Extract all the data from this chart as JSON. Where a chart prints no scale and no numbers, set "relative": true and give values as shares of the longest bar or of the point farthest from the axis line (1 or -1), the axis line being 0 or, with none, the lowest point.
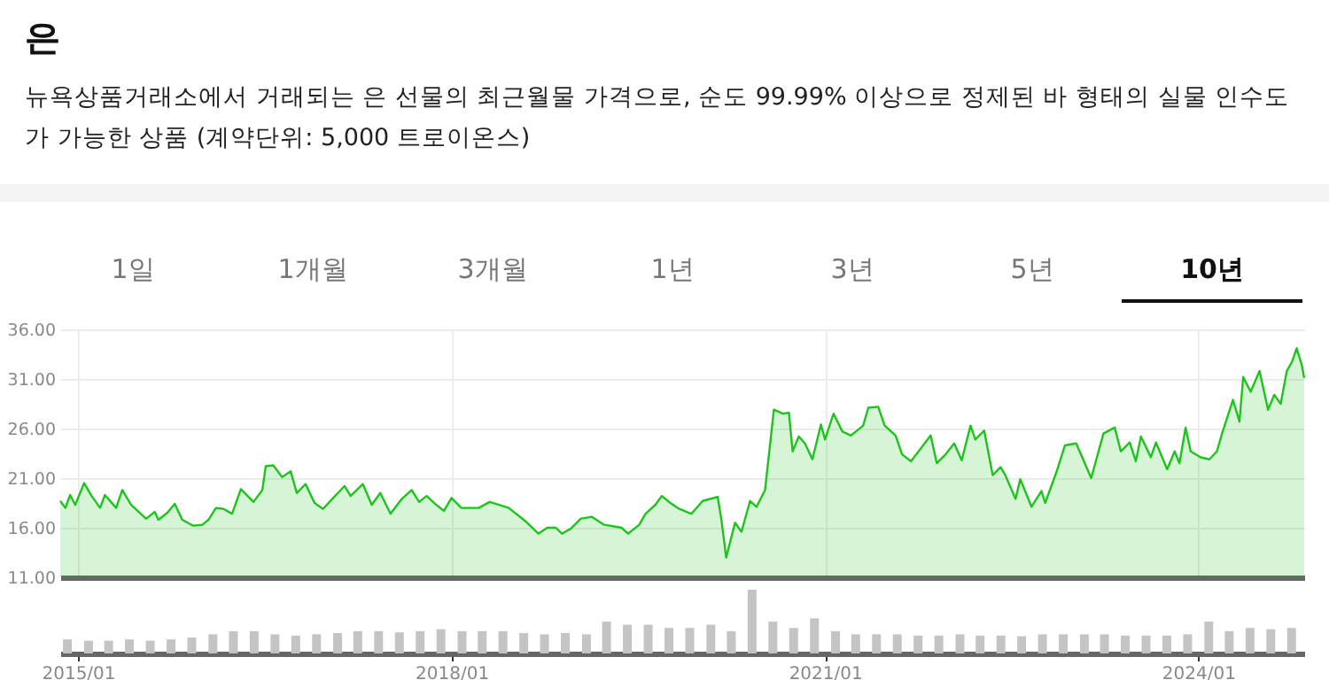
{
  "chart_data": [
    {
      "type": "area",
      "title": "은",
      "subtitle": "뉴욕상품거래소에서 거래되는 은 선물의 최근월물 가격으로, 순도 99.99% 이상으로 정제된 바 형태의 실물 인수도가 가능한 상품 (계약단위: 5,000 트로이온스)",
      "annotations": [
        "1일",
        "1개월",
        "3개월",
        "1년",
        "3년",
        "5년",
        "10년"
      ],
      "x": [
        "2014-11-10",
        "2014-11-25",
        "2014-12-09",
        "2014-12-24",
        "2015-01-19",
        "2015-02-10",
        "2015-03-07",
        "2015-03-21",
        "2015-04-23",
        "2015-05-11",
        "2015-06-06",
        "2015-07-20",
        "2015-08-14",
        "2015-08-25",
        "2015-09-20",
        "2015-10-12",
        "2015-11-03",
        "2015-12-05",
        "2016-01-01",
        "2016-01-19",
        "2016-02-10",
        "2016-03-03",
        "2016-03-28",
        "2016-04-23",
        "2016-05-30",
        "2016-06-25",
        "2016-07-05",
        "2016-07-27",
        "2016-08-22",
        "2016-09-16",
        "2016-10-04",
        "2016-10-30",
        "2016-11-25",
        "2016-12-20",
        "2017-01-19",
        "2017-02-21",
        "2017-03-11",
        "2017-04-16",
        "2017-05-12",
        "2017-06-06",
        "2017-07-06",
        "2017-08-08",
        "2017-09-06",
        "2017-09-28",
        "2017-10-20",
        "2017-11-14",
        "2017-12-10",
        "2018-01-01",
        "2018-01-30",
        "2018-03-22",
        "2018-04-23",
        "2018-06-18",
        "2018-08-08",
        "2018-09-13",
        "2018-10-09",
        "2018-11-03",
        "2018-11-21",
        "2018-12-17",
        "2019-01-15",
        "2019-02-17",
        "2019-03-25",
        "2019-05-15",
        "2019-06-03",
        "2019-07-06",
        "2019-07-24",
        "2019-08-22",
        "2019-09-10",
        "2019-10-05",
        "2019-10-31",
        "2019-12-06",
        "2020-01-08",
        "2020-02-21",
        "2020-03-03",
        "2020-03-17",
        "2020-04-12",
        "2020-05-01",
        "2020-05-26",
        "2020-06-14",
        "2020-07-09",
        "2020-08-04",
        "2020-08-30",
        "2020-09-17",
        "2020-09-28",
        "2020-10-16",
        "2020-11-03",
        "2020-11-25",
        "2020-12-20",
        "2021-01-01",
        "2021-01-26",
        "2021-02-21",
        "2021-03-18",
        "2021-04-23",
        "2021-05-08",
        "2021-06-06",
        "2021-06-25",
        "2021-07-27",
        "2021-08-15",
        "2021-09-10",
        "2021-10-16",
        "2021-11-07",
        "2021-11-25",
        "2021-12-21",
        "2022-01-15",
        "2022-02-06",
        "2022-03-04",
        "2022-03-18",
        "2022-04-13",
        "2022-05-08",
        "2022-05-31",
        "2022-06-14",
        "2022-07-14",
        "2022-07-28",
        "2022-08-30",
        "2022-09-28",
        "2022-10-09",
        "2022-11-11",
        "2022-12-06",
        "2023-01-08",
        "2023-02-21",
        "2023-03-29",
        "2023-05-01",
        "2023-05-19",
        "2023-06-14",
        "2023-07-02",
        "2023-07-17",
        "2023-08-15",
        "2023-08-30",
        "2023-10-02",
        "2023-10-24",
        "2023-11-07",
        "2023-11-25",
        "2023-12-10",
        "2024-01-08",
        "2024-02-03",
        "2024-02-25",
        "2024-03-11",
        "2024-04-12",
        "2024-05-01",
        "2024-05-12",
        "2024-06-03",
        "2024-06-29",
        "2024-07-24",
        "2024-08-11",
        "2024-08-30",
        "2024-09-17",
        "2024-10-02",
        "2024-10-16",
        "2024-10-31",
        "2024-11-07"
      ],
      "series": [
        {
          "color": "#1ec31e",
          "values": [
            18.7,
            18.0,
            19.3,
            18.3,
            20.5,
            19.2,
            18.0,
            19.3,
            18.0,
            19.8,
            18.3,
            16.9,
            17.6,
            16.8,
            17.5,
            18.4,
            16.8,
            16.2,
            16.3,
            16.8,
            18.0,
            17.9,
            17.4,
            19.9,
            18.6,
            19.8,
            22.2,
            22.3,
            21.1,
            21.7,
            19.5,
            20.4,
            18.5,
            17.9,
            19.0,
            20.2,
            19.2,
            20.4,
            18.3,
            19.5,
            17.4,
            18.9,
            19.8,
            18.6,
            19.2,
            18.4,
            17.7,
            19.0,
            18.0,
            18.0,
            18.6,
            18.0,
            16.6,
            15.4,
            16.0,
            16.0,
            15.4,
            15.9,
            16.9,
            17.1,
            16.3,
            16.0,
            15.4,
            16.3,
            17.4,
            18.3,
            19.2,
            18.5,
            17.9,
            17.4,
            18.7,
            19.1,
            16.8,
            13.0,
            16.5,
            15.6,
            18.7,
            18.1,
            19.8,
            27.9,
            27.5,
            27.6,
            23.7,
            25.2,
            24.5,
            22.9,
            26.4,
            24.9,
            27.5,
            25.7,
            25.3,
            26.3,
            28.1,
            28.2,
            26.3,
            25.3,
            23.4,
            22.7,
            24.3,
            25.3,
            22.5,
            23.4,
            24.5,
            22.8,
            26.3,
            24.9,
            25.8,
            21.3,
            22.1,
            21.3,
            18.9,
            20.9,
            18.1,
            19.7,
            18.5,
            21.6,
            24.3,
            24.5,
            21.0,
            25.5,
            26.1,
            23.7,
            24.6,
            22.7,
            25.2,
            23.1,
            24.6,
            21.9,
            23.7,
            22.5,
            26.1,
            23.7,
            23.1,
            22.9,
            23.7,
            25.5,
            28.9,
            26.7,
            31.2,
            29.7,
            31.8,
            27.9,
            29.4,
            28.5,
            31.8,
            32.7,
            34.1,
            32.4,
            31.1
          ]
        }
      ],
      "xlim": [
        "2014-11-10",
        "2024-11-07"
      ],
      "ylim": [
        11,
        36
      ],
      "yticks": [
        {
          "value": 11,
          "label": "11.00"
        },
        {
          "value": 16,
          "label": "16.00"
        },
        {
          "value": 21,
          "label": "21.00"
        },
        {
          "value": 26,
          "label": "26.00"
        },
        {
          "value": 31,
          "label": "31.00"
        },
        {
          "value": 36,
          "label": "36.00"
        }
      ],
      "grid": true,
      "tick_labels": "y"
    },
    {
      "type": "bar",
      "relative": true,
      "tick_labels": "x",
      "x": [
        "2014-12-01",
        "2015-02-01",
        "2015-04-01",
        "2015-06-01",
        "2015-08-01",
        "2015-10-01",
        "2015-12-01",
        "2016-02-01",
        "2016-04-01",
        "2016-06-01",
        "2016-08-01",
        "2016-10-01",
        "2016-12-01",
        "2017-02-01",
        "2017-04-01",
        "2017-06-01",
        "2017-08-01",
        "2017-10-01",
        "2017-12-01",
        "2018-02-01",
        "2018-04-01",
        "2018-06-01",
        "2018-08-01",
        "2018-10-01",
        "2018-12-01",
        "2019-02-01",
        "2019-04-01",
        "2019-06-01",
        "2019-08-01",
        "2019-10-01",
        "2019-12-01",
        "2020-02-01",
        "2020-04-01",
        "2020-06-01",
        "2020-08-01",
        "2020-10-01",
        "2020-12-01",
        "2021-02-01",
        "2021-04-01",
        "2021-06-01",
        "2021-08-01",
        "2021-10-01",
        "2021-12-01",
        "2022-02-01",
        "2022-04-01",
        "2022-06-01",
        "2022-08-01",
        "2022-10-01",
        "2022-12-01",
        "2023-02-01",
        "2023-04-01",
        "2023-06-01",
        "2023-08-01",
        "2023-10-01",
        "2023-12-01",
        "2024-02-01",
        "2024-04-01",
        "2024-06-01",
        "2024-08-01",
        "2024-10-01"
      ],
      "series": [
        {
          "color": "#c4c4c4",
          "values": [
            0.22,
            0.2,
            0.2,
            0.22,
            0.2,
            0.22,
            0.25,
            0.3,
            0.35,
            0.35,
            0.3,
            0.28,
            0.3,
            0.32,
            0.35,
            0.35,
            0.33,
            0.35,
            0.38,
            0.35,
            0.35,
            0.35,
            0.32,
            0.3,
            0.32,
            0.3,
            0.5,
            0.45,
            0.45,
            0.4,
            0.4,
            0.45,
            0.35,
            1.0,
            0.5,
            0.4,
            0.55,
            0.35,
            0.3,
            0.3,
            0.3,
            0.28,
            0.28,
            0.3,
            0.28,
            0.28,
            0.27,
            0.3,
            0.3,
            0.3,
            0.3,
            0.28,
            0.28,
            0.28,
            0.3,
            0.5,
            0.35,
            0.4,
            0.38,
            0.4
          ]
        }
      ],
      "xlim": [
        "2014-11-10",
        "2024-11-07"
      ],
      "xticks": [
        {
          "value": "2015-01-01",
          "label": "2015/01"
        },
        {
          "value": "2018-01-01",
          "label": "2018/01"
        },
        {
          "value": "2021-01-01",
          "label": "2021/01"
        },
        {
          "value": "2024-01-01",
          "label": "2024/01"
        }
      ]
    }
  ]
}
